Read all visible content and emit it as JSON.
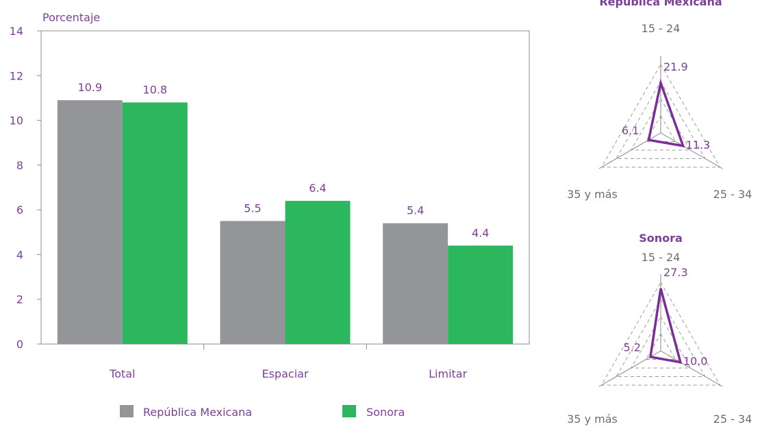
{
  "colors": {
    "republica": "#939598",
    "sonora": "#2cb65e",
    "text_purple": "#7b3f98",
    "axis": "#8c8c8c",
    "radar_line": "#7b2d99",
    "radar_grid": "#9a9a9a",
    "label_gray": "#6d6e71"
  },
  "chart_data": [
    {
      "type": "bar",
      "ylabel": "Porcentaje",
      "ylim": [
        0,
        14
      ],
      "yticks": [
        0,
        2,
        4,
        6,
        8,
        10,
        12,
        14
      ],
      "categories": [
        "Total",
        "Espaciar",
        "Limitar"
      ],
      "series": [
        {
          "name": "República Mexicana",
          "values": [
            10.9,
            5.5,
            5.4
          ]
        },
        {
          "name": "Sonora",
          "values": [
            10.8,
            6.4,
            4.4
          ]
        }
      ],
      "legend_position": "bottom",
      "grid": false
    },
    {
      "type": "radar",
      "title": "República Mexicana",
      "axes": [
        "15 - 24",
        "25 - 34",
        "35 y más"
      ],
      "values": [
        21.9,
        11.3,
        6.1
      ],
      "max": 30
    },
    {
      "type": "radar",
      "title": "Sonora",
      "axes": [
        "15 - 24",
        "25 - 34",
        "35 y más"
      ],
      "values": [
        27.3,
        10.0,
        5.2
      ],
      "max": 30
    }
  ]
}
